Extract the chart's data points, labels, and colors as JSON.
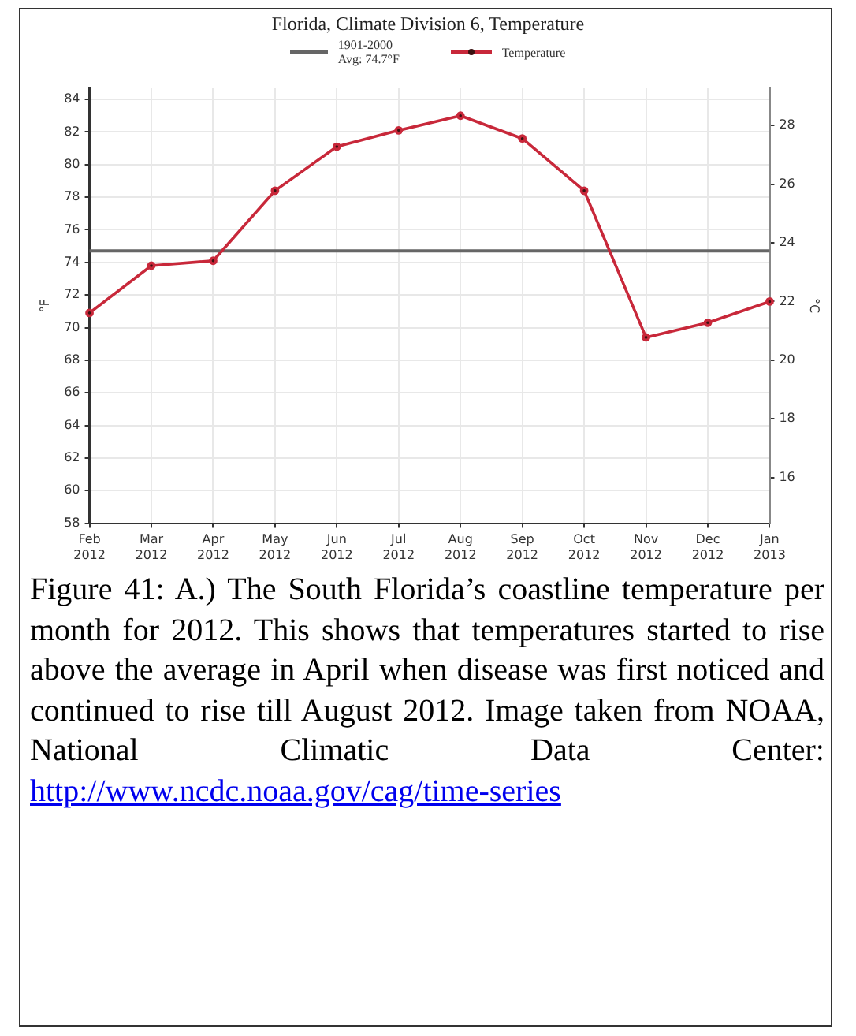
{
  "chart_data": {
    "type": "line",
    "title": "Florida, Climate Division 6, Temperature",
    "categories": [
      "Feb 2012",
      "Mar 2012",
      "Apr 2012",
      "May 2012",
      "Jun 2012",
      "Jul 2012",
      "Aug 2012",
      "Sep 2012",
      "Oct 2012",
      "Nov 2012",
      "Dec 2012",
      "Jan 2013"
    ],
    "series": [
      {
        "name": "Temperature",
        "color": "#c8283a",
        "values": [
          70.9,
          73.8,
          74.1,
          78.4,
          81.1,
          82.1,
          83.0,
          81.6,
          78.4,
          69.4,
          70.3,
          71.6
        ]
      }
    ],
    "ylabel": "°F",
    "y2label": "°C",
    "ylim": [
      58,
      84.7
    ],
    "yticks": [
      58,
      60,
      62,
      64,
      66,
      68,
      70,
      72,
      74,
      76,
      78,
      80,
      82,
      84
    ],
    "y2lim": [
      14.44,
      29.28
    ],
    "y2ticks": [
      16,
      18,
      20,
      22,
      24,
      26,
      28
    ],
    "ref_lines": [
      {
        "axis": "y",
        "value": 74.7,
        "label": "1901-2000 Avg: 74.7°F",
        "color": "#666666"
      }
    ],
    "grid": true,
    "legend": "top",
    "marker": "circle",
    "line_style": "solid",
    "annotations": [
      "Figure 41: A.) The South Florida’s coastline temperature per month for 2012. This shows that temperatures started to rise above the average in April when disease was first noticed and continued to rise till August 2012. Image taken from NOAA, National Climatic Data Center:",
      "http://www.ncdc.noaa.gov/cag/time-series"
    ]
  }
}
